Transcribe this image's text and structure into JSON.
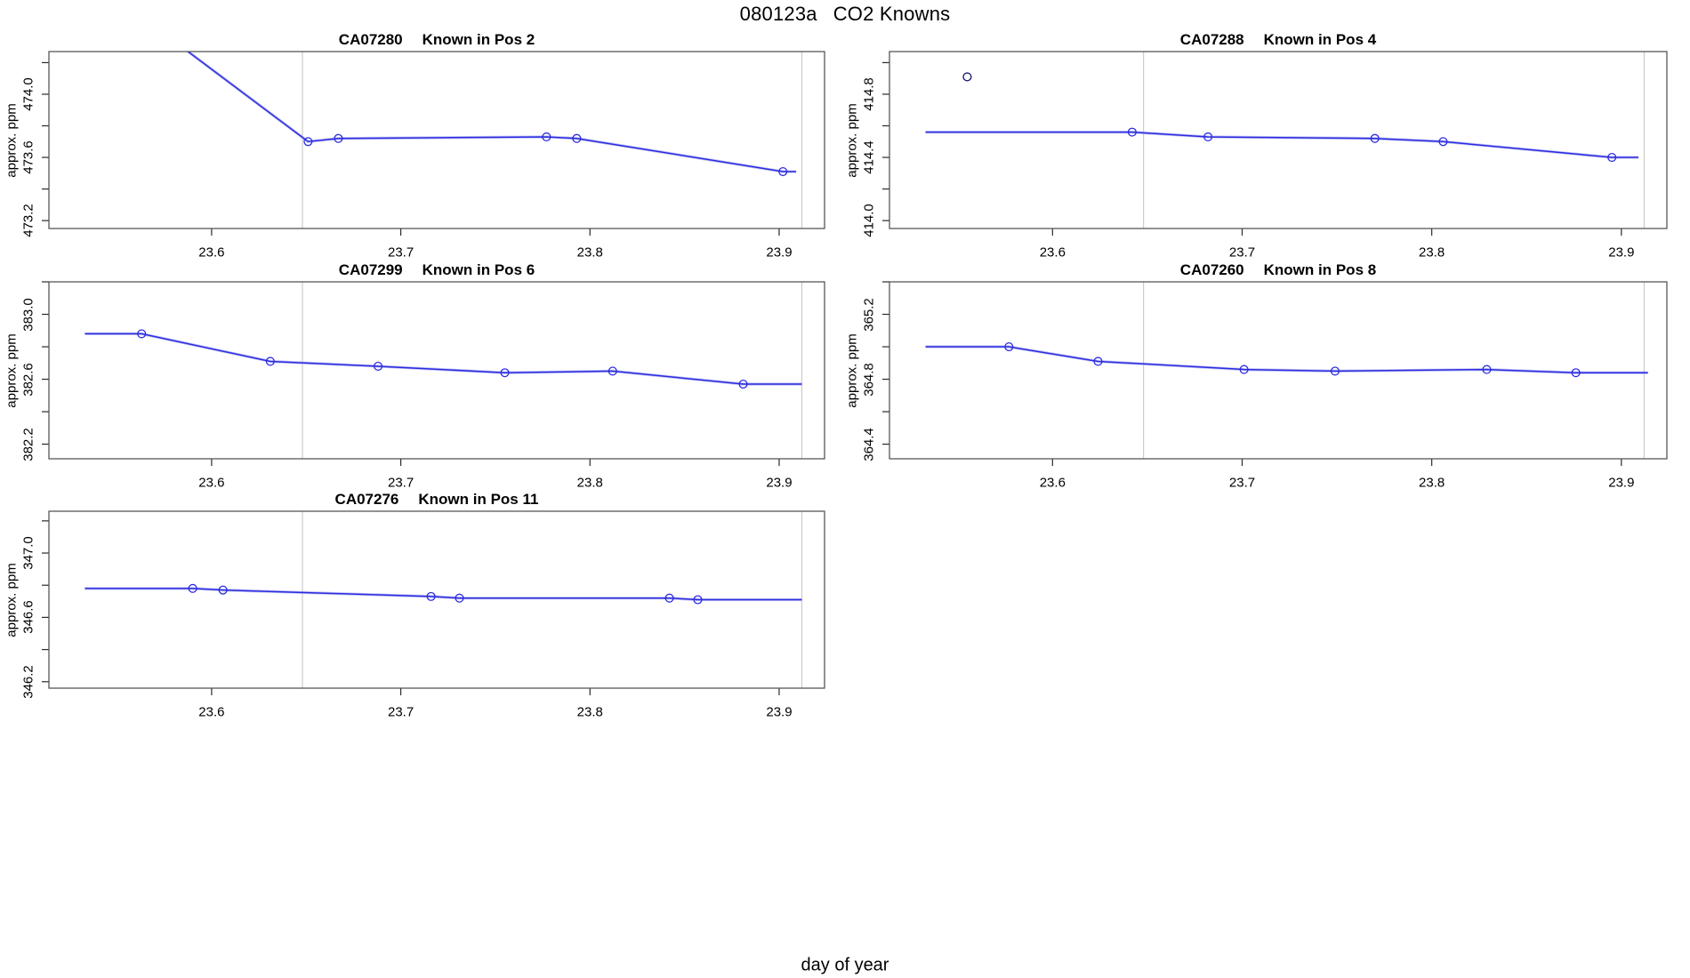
{
  "page": {
    "main_title": {
      "prefix": "080123a",
      "title": "CO2 Knowns"
    }
  },
  "axes": {
    "xlabel": "day of year",
    "ylabel": "approx. ppm",
    "xlim": [
      23.514,
      23.924
    ],
    "x_ticks": [
      {
        "v": 23.6,
        "label": "23.6"
      },
      {
        "v": 23.7,
        "label": "23.7"
      },
      {
        "v": 23.8,
        "label": "23.8"
      },
      {
        "v": 23.9,
        "label": "23.9"
      }
    ],
    "vertical_reference_lines": [
      23.648,
      23.912
    ]
  },
  "style": {
    "line_color": "#2b2be0",
    "halo_color": "#a8a8f0",
    "point_color": "#2b2be0",
    "outlier_point_color": "#1d1d70",
    "vline_color": "#c7c7c7",
    "border_color": "#4a4a4a",
    "tick_color": "#2a2a2a",
    "text_color": "#000000"
  },
  "chart_data": [
    {
      "type": "line",
      "instrument": "CA07280",
      "position_label": "Known in Pos 2",
      "ylim": [
        473.15,
        474.27
      ],
      "y_ticks": [
        {
          "v": 473.2,
          "label": "473.2"
        },
        {
          "v": 473.4,
          "label": ""
        },
        {
          "v": 473.6,
          "label": "473.6"
        },
        {
          "v": 473.8,
          "label": ""
        },
        {
          "v": 474.0,
          "label": "474.0"
        },
        {
          "v": 474.2,
          "label": ""
        }
      ],
      "line": [
        [
          23.533,
          474.76
        ],
        [
          23.651,
          473.7
        ],
        [
          23.667,
          473.72
        ],
        [
          23.777,
          473.73
        ],
        [
          23.793,
          473.72
        ],
        [
          23.902,
          473.51
        ],
        [
          23.909,
          473.51
        ]
      ],
      "points": [
        [
          23.651,
          473.7
        ],
        [
          23.667,
          473.72
        ],
        [
          23.777,
          473.73
        ],
        [
          23.793,
          473.72
        ],
        [
          23.902,
          473.51
        ]
      ],
      "outliers": []
    },
    {
      "type": "line",
      "instrument": "CA07288",
      "position_label": "Known in Pos 4",
      "ylim": [
        413.95,
        415.07
      ],
      "y_ticks": [
        {
          "v": 414.0,
          "label": "414.0"
        },
        {
          "v": 414.2,
          "label": ""
        },
        {
          "v": 414.4,
          "label": "414.4"
        },
        {
          "v": 414.6,
          "label": ""
        },
        {
          "v": 414.8,
          "label": "414.8"
        },
        {
          "v": 415.0,
          "label": ""
        }
      ],
      "line": [
        [
          23.533,
          414.56
        ],
        [
          23.642,
          414.56
        ],
        [
          23.682,
          414.53
        ],
        [
          23.77,
          414.52
        ],
        [
          23.806,
          414.5
        ],
        [
          23.895,
          414.4
        ],
        [
          23.909,
          414.4
        ]
      ],
      "points": [
        [
          23.642,
          414.56
        ],
        [
          23.682,
          414.53
        ],
        [
          23.77,
          414.52
        ],
        [
          23.806,
          414.5
        ],
        [
          23.895,
          414.4
        ]
      ],
      "outliers": [
        [
          23.555,
          414.91
        ]
      ]
    },
    {
      "type": "line",
      "instrument": "CA07299",
      "position_label": "Known in Pos 6",
      "ylim": [
        382.11,
        383.2
      ],
      "y_ticks": [
        {
          "v": 382.2,
          "label": "382.2"
        },
        {
          "v": 382.4,
          "label": ""
        },
        {
          "v": 382.6,
          "label": "382.6"
        },
        {
          "v": 382.8,
          "label": ""
        },
        {
          "v": 383.0,
          "label": "383.0"
        },
        {
          "v": 383.2,
          "label": ""
        }
      ],
      "line": [
        [
          23.533,
          382.88
        ],
        [
          23.563,
          382.88
        ],
        [
          23.631,
          382.71
        ],
        [
          23.688,
          382.68
        ],
        [
          23.755,
          382.64
        ],
        [
          23.812,
          382.65
        ],
        [
          23.881,
          382.57
        ],
        [
          23.912,
          382.57
        ]
      ],
      "points": [
        [
          23.563,
          382.88
        ],
        [
          23.631,
          382.71
        ],
        [
          23.688,
          382.68
        ],
        [
          23.755,
          382.64
        ],
        [
          23.812,
          382.65
        ],
        [
          23.881,
          382.57
        ]
      ],
      "outliers": []
    },
    {
      "type": "line",
      "instrument": "CA07260",
      "position_label": "Known in Pos 8",
      "ylim": [
        364.31,
        365.4
      ],
      "y_ticks": [
        {
          "v": 364.4,
          "label": "364.4"
        },
        {
          "v": 364.6,
          "label": ""
        },
        {
          "v": 364.8,
          "label": "364.8"
        },
        {
          "v": 365.0,
          "label": ""
        },
        {
          "v": 365.2,
          "label": "365.2"
        },
        {
          "v": 365.4,
          "label": ""
        }
      ],
      "line": [
        [
          23.533,
          365.0
        ],
        [
          23.577,
          365.0
        ],
        [
          23.624,
          364.91
        ],
        [
          23.701,
          364.86
        ],
        [
          23.749,
          364.85
        ],
        [
          23.829,
          364.86
        ],
        [
          23.876,
          364.84
        ],
        [
          23.914,
          364.84
        ]
      ],
      "points": [
        [
          23.577,
          365.0
        ],
        [
          23.624,
          364.91
        ],
        [
          23.701,
          364.86
        ],
        [
          23.749,
          364.85
        ],
        [
          23.829,
          364.86
        ],
        [
          23.876,
          364.84
        ]
      ],
      "outliers": []
    },
    {
      "type": "line",
      "instrument": "CA07276",
      "position_label": "Known in Pos 11",
      "ylim": [
        346.16,
        347.26
      ],
      "y_ticks": [
        {
          "v": 346.2,
          "label": "346.2"
        },
        {
          "v": 346.4,
          "label": ""
        },
        {
          "v": 346.6,
          "label": "346.6"
        },
        {
          "v": 346.8,
          "label": ""
        },
        {
          "v": 347.0,
          "label": "347.0"
        },
        {
          "v": 347.2,
          "label": ""
        }
      ],
      "line": [
        [
          23.533,
          346.78
        ],
        [
          23.59,
          346.78
        ],
        [
          23.606,
          346.77
        ],
        [
          23.716,
          346.73
        ],
        [
          23.731,
          346.72
        ],
        [
          23.842,
          346.72
        ],
        [
          23.857,
          346.71
        ],
        [
          23.912,
          346.71
        ]
      ],
      "points": [
        [
          23.59,
          346.78
        ],
        [
          23.606,
          346.77
        ],
        [
          23.716,
          346.73
        ],
        [
          23.731,
          346.72
        ],
        [
          23.842,
          346.72
        ],
        [
          23.857,
          346.71
        ]
      ],
      "outliers": []
    }
  ]
}
